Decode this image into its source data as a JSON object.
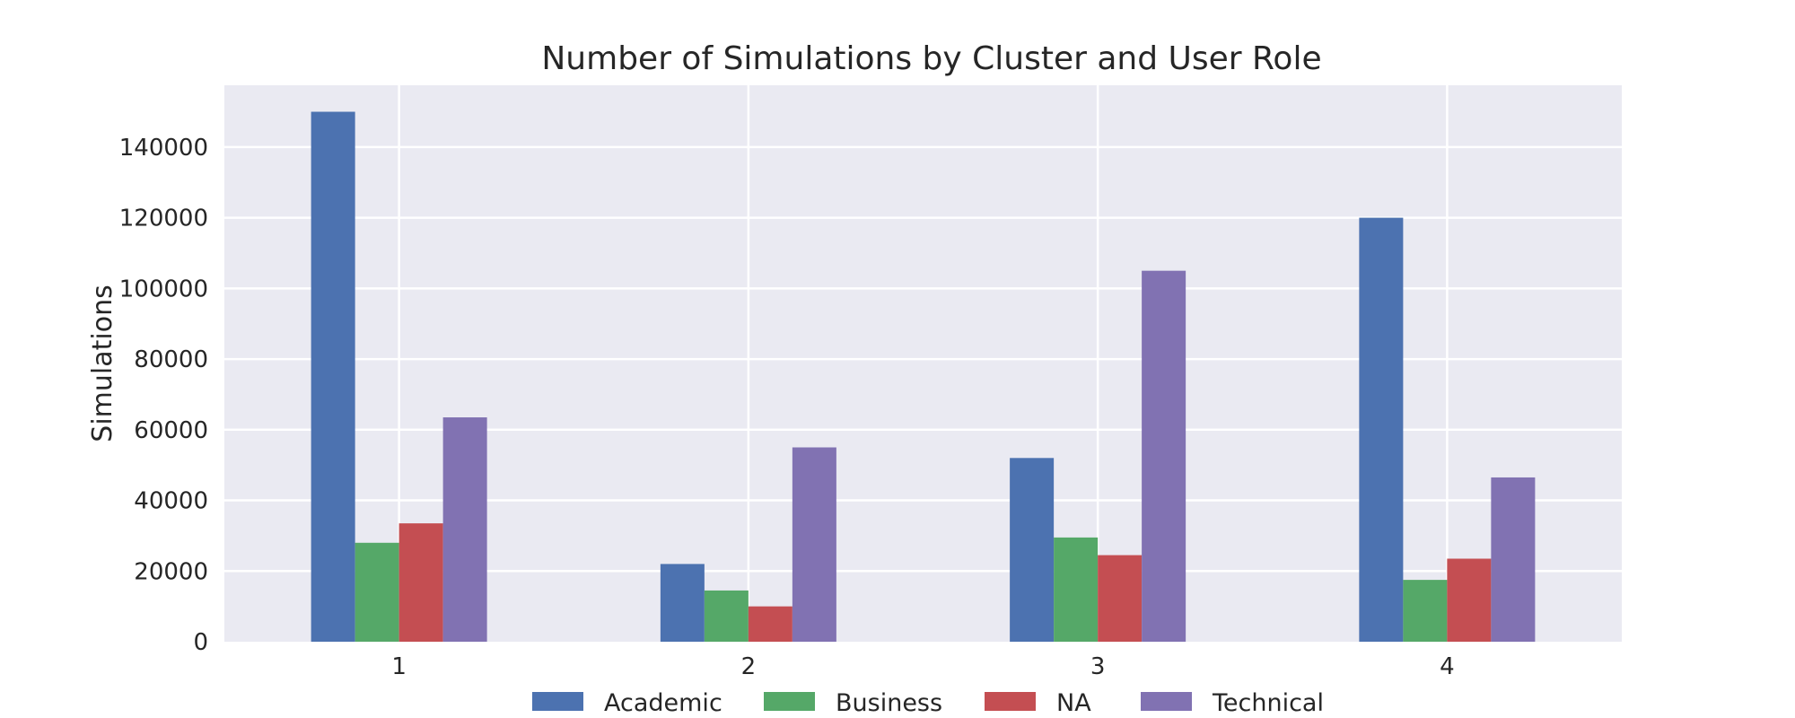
{
  "chart_data": {
    "type": "bar",
    "title": "Number of Simulations by Cluster and User Role",
    "xlabel": "",
    "ylabel": "Simulations",
    "categories": [
      "1",
      "2",
      "3",
      "4"
    ],
    "series": [
      {
        "name": "Academic",
        "color": "#4c72b0",
        "values": [
          150000,
          22000,
          52000,
          120000
        ]
      },
      {
        "name": "Business",
        "color": "#55a868",
        "values": [
          28000,
          14500,
          29500,
          17500
        ]
      },
      {
        "name": "NA",
        "color": "#c44e52",
        "values": [
          33500,
          10000,
          24500,
          23500
        ]
      },
      {
        "name": "Technical",
        "color": "#8172b2",
        "values": [
          63500,
          55000,
          105000,
          46500
        ]
      }
    ],
    "ylim": [
      0,
      157500
    ],
    "yticks": [
      0,
      20000,
      40000,
      60000,
      80000,
      100000,
      120000,
      140000
    ],
    "grid": true,
    "legend_position": "bottom-center",
    "style": {
      "plot_background": "#eaeaf2",
      "grid_color": "#ffffff"
    }
  }
}
